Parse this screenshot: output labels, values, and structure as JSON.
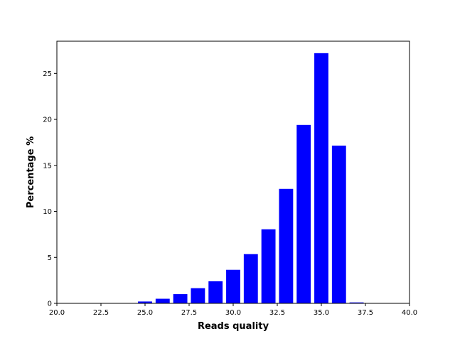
{
  "chart_data": {
    "type": "bar",
    "title": "",
    "xlabel": "Reads quality",
    "ylabel": "Percentage %",
    "xlim": [
      20.0,
      40.0
    ],
    "ylim": [
      0,
      28.5
    ],
    "x_ticks": [
      20.0,
      22.5,
      25.0,
      27.5,
      30.0,
      32.5,
      35.0,
      37.5,
      40.0
    ],
    "x_tick_labels": [
      "20.0",
      "22.5",
      "25.0",
      "27.5",
      "30.0",
      "32.5",
      "35.0",
      "37.5",
      "40.0"
    ],
    "y_ticks": [
      0,
      5,
      10,
      15,
      20,
      25
    ],
    "y_tick_labels": [
      "0",
      "5",
      "10",
      "15",
      "20",
      "25"
    ],
    "bar_color": "#0000ff",
    "bar_width": 0.8,
    "grid": false,
    "x": [
      25,
      26,
      27,
      28,
      29,
      30,
      31,
      32,
      33,
      34,
      35,
      36,
      37
    ],
    "values": [
      0.2,
      0.5,
      1.0,
      1.65,
      2.4,
      3.65,
      5.35,
      8.05,
      12.45,
      19.4,
      27.2,
      17.15,
      0.1
    ]
  }
}
